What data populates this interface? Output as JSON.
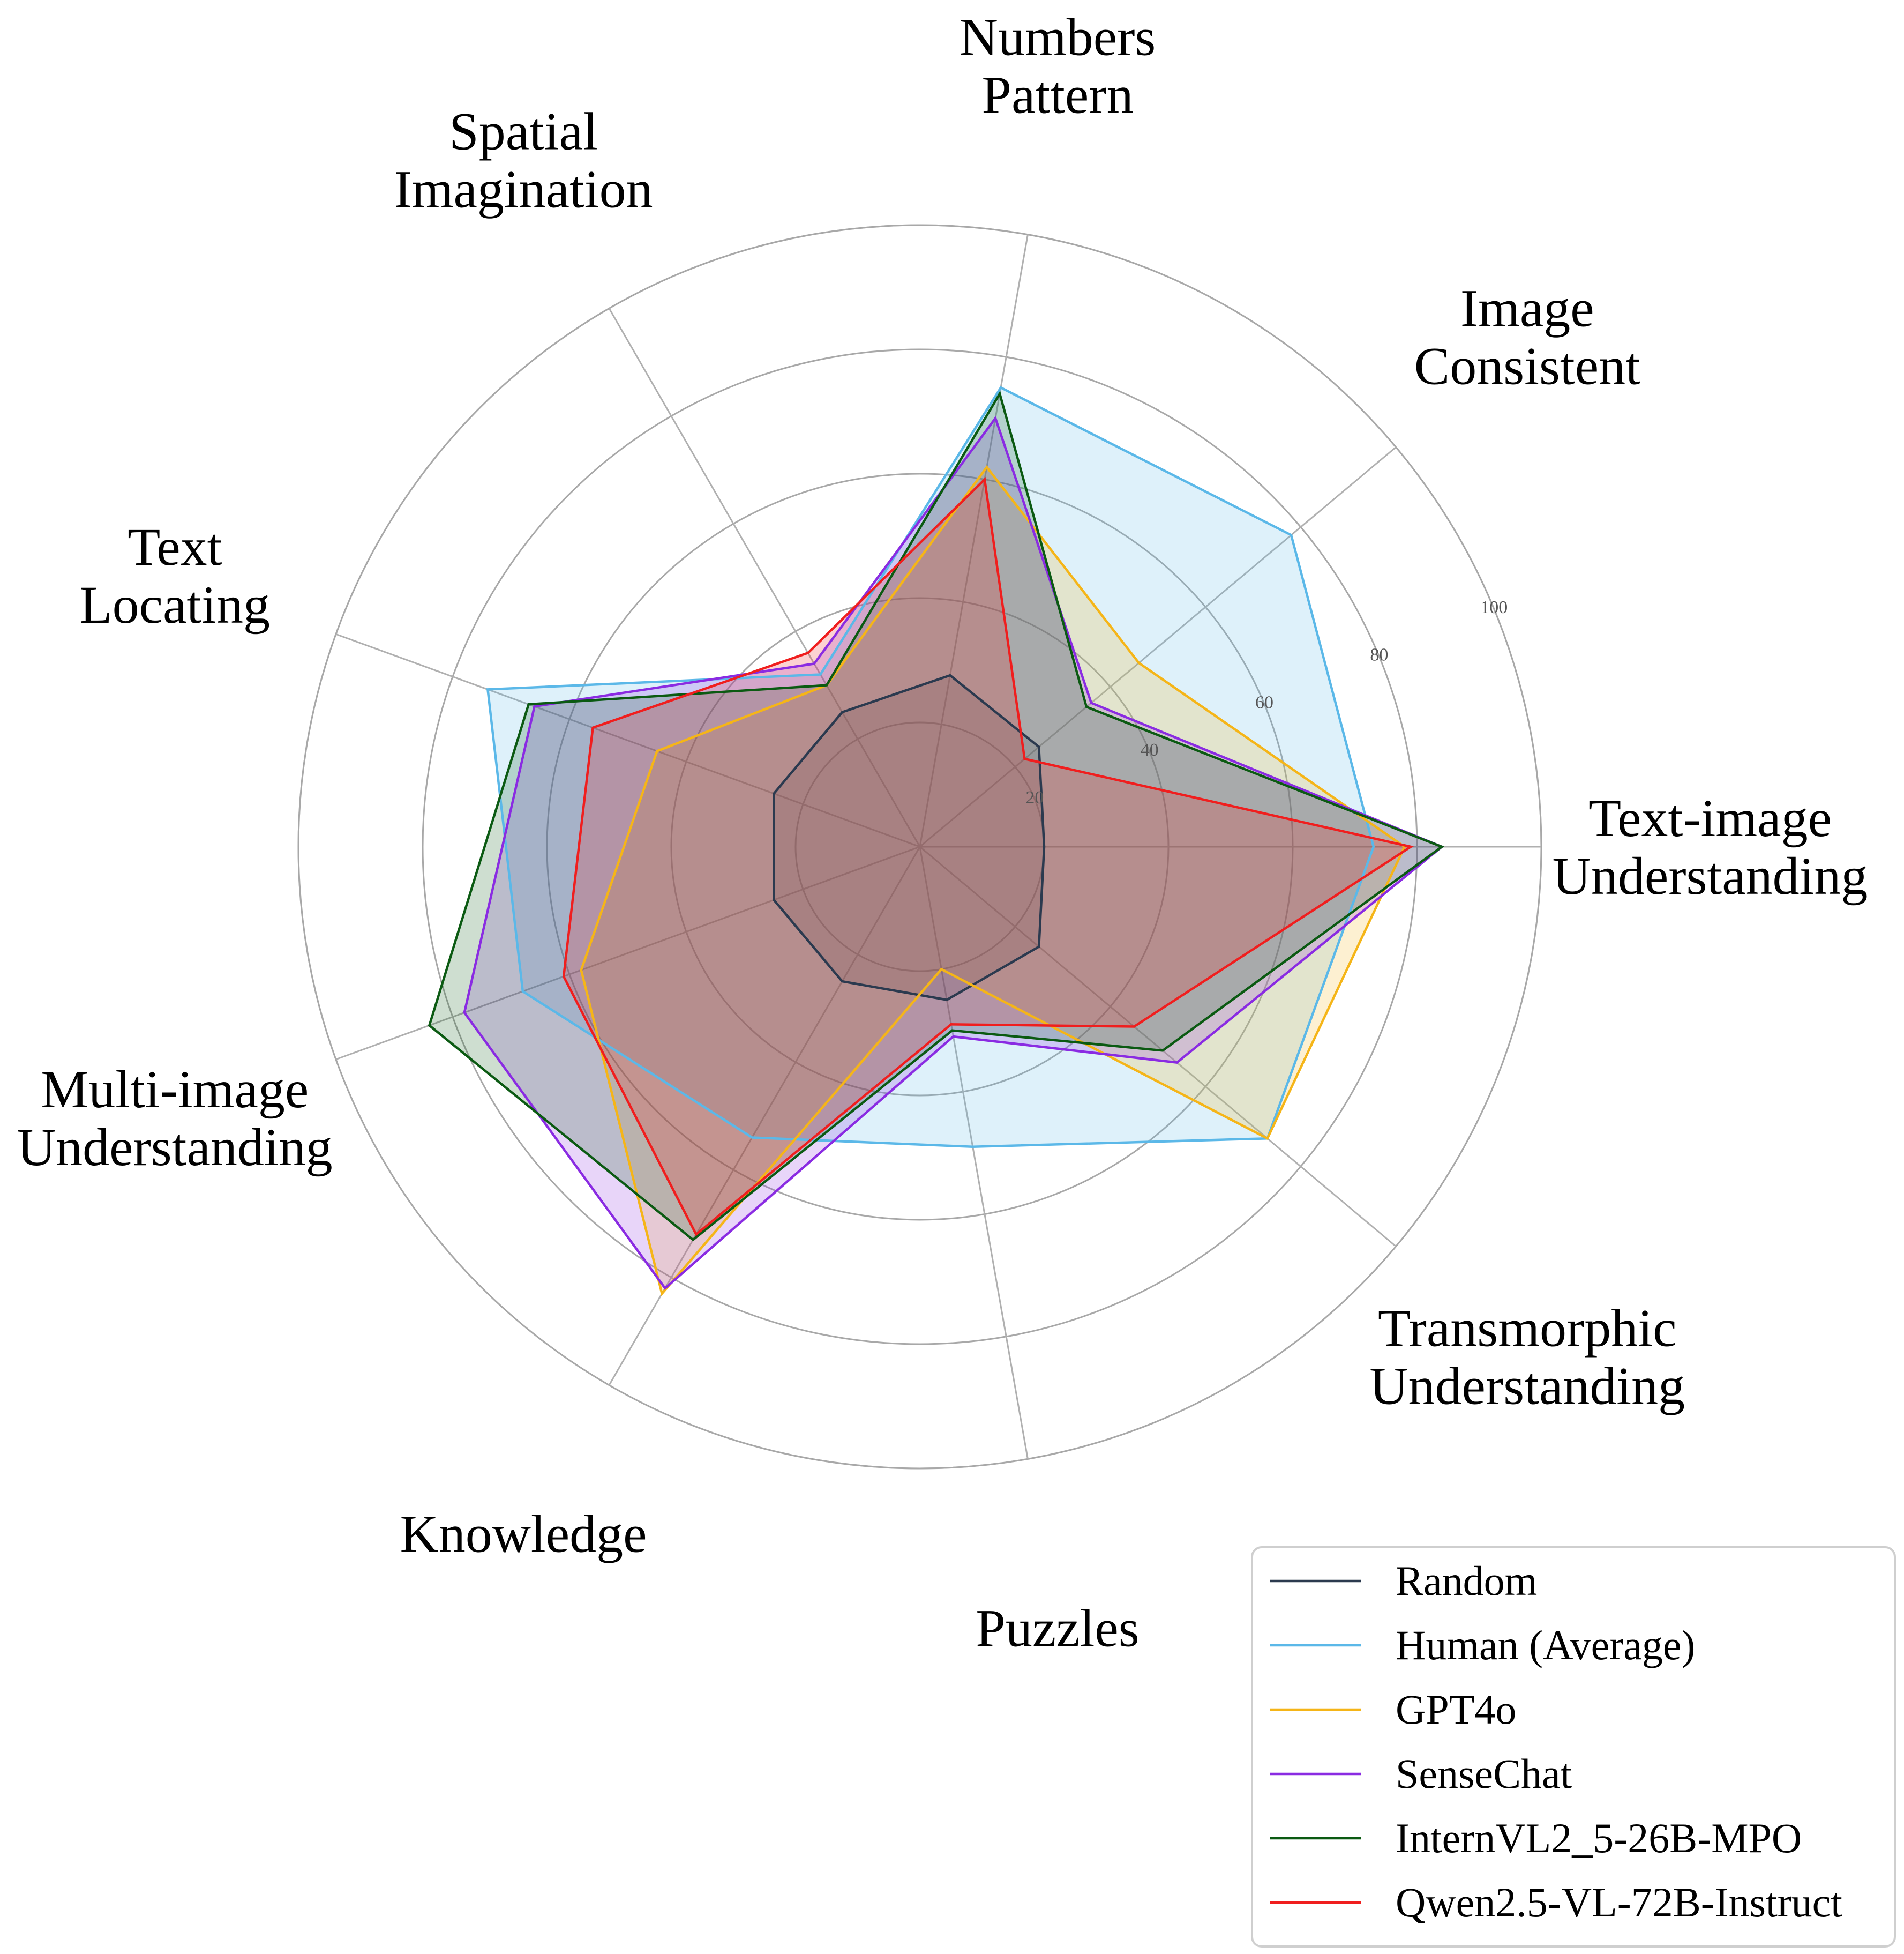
{
  "chart_data": {
    "type": "radar",
    "axes": [
      [
        "Text-image",
        "Understanding"
      ],
      [
        "Image",
        "Consistent"
      ],
      [
        "Numbers",
        "Pattern"
      ],
      [
        "Spatial",
        "Imagination"
      ],
      [
        "Text",
        "Locating"
      ],
      [
        "Multi-image",
        "Understanding"
      ],
      [
        "Knowledge"
      ],
      [
        "Puzzles"
      ],
      [
        "Transmorphic",
        "Understanding"
      ]
    ],
    "rlim": [
      0,
      100
    ],
    "rticks": [
      20,
      40,
      60,
      80,
      100
    ],
    "rtick_labels": [
      "20",
      "40",
      "60",
      "80",
      "100"
    ],
    "grid": true,
    "legend_position": "lower-right",
    "series": [
      {
        "name": "Random",
        "color": "#2B3A4F",
        "values": [
          20,
          25,
          28,
          25,
          25,
          25,
          25,
          25,
          25
        ]
      },
      {
        "name": "Human (Average)",
        "color": "#5BB8E8",
        "values": [
          73,
          78,
          75,
          32,
          74,
          68,
          54,
          49,
          73
        ]
      },
      {
        "name": "GPT4o",
        "color": "#F5B518",
        "values": [
          78,
          46,
          62,
          30,
          45,
          58,
          83,
          20,
          73
        ]
      },
      {
        "name": "SenseChat",
        "color": "#8A2BE2",
        "values": [
          84,
          36,
          70,
          34,
          66,
          78,
          82,
          31,
          54
        ]
      },
      {
        "name": "InternVL2_5-26B-MPO",
        "color": "#0B5A12",
        "values": [
          84,
          35,
          74,
          30,
          67,
          84,
          73,
          30,
          51
        ]
      },
      {
        "name": "Qwen2.5-VL-72B-Instruct",
        "color": "#F01E1E",
        "values": [
          79,
          22,
          60,
          36,
          56,
          61,
          72,
          29,
          45
        ]
      }
    ]
  }
}
